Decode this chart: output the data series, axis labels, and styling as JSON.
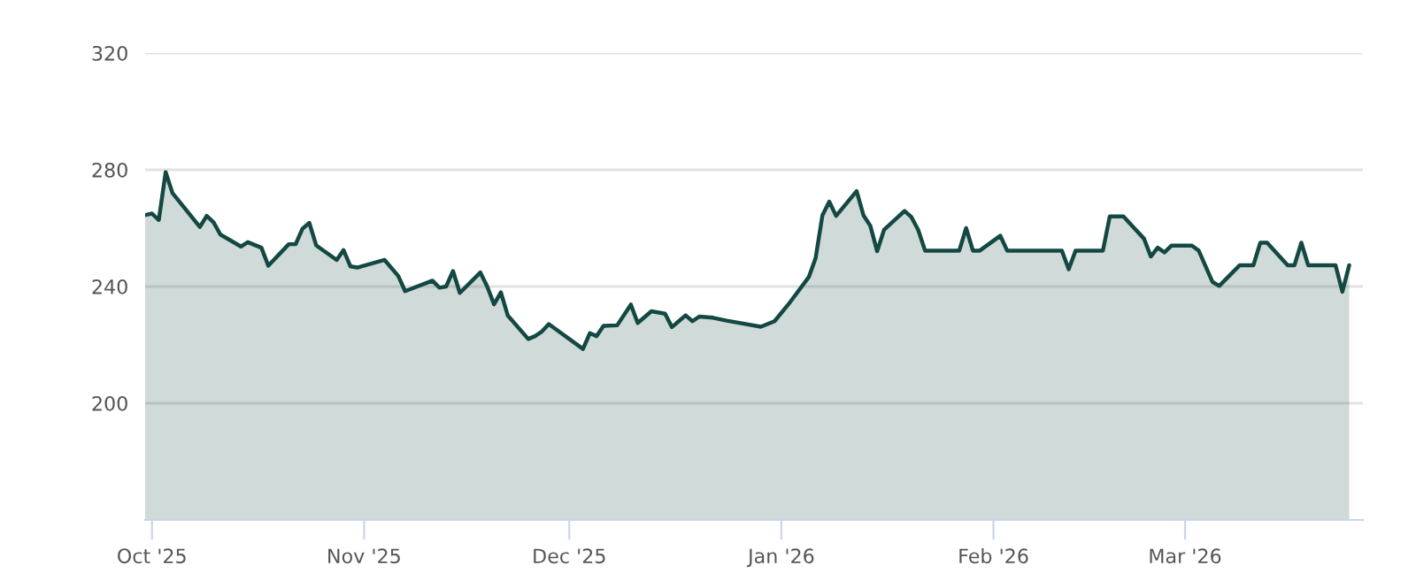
{
  "chart_data": {
    "type": "area",
    "x": [
      "2025-09-30",
      "2025-10-01",
      "2025-10-02",
      "2025-10-03",
      "2025-10-04",
      "2025-10-08",
      "2025-10-09",
      "2025-10-10",
      "2025-10-11",
      "2025-10-14",
      "2025-10-15",
      "2025-10-17",
      "2025-10-18",
      "2025-10-21",
      "2025-10-22",
      "2025-10-23",
      "2025-10-24",
      "2025-10-25",
      "2025-10-28",
      "2025-10-29",
      "2025-10-30",
      "2025-10-31",
      "2025-11-04",
      "2025-11-06",
      "2025-11-07",
      "2025-11-11",
      "2025-11-12",
      "2025-11-13",
      "2025-11-14",
      "2025-11-15",
      "2025-11-18",
      "2025-11-19",
      "2025-11-20",
      "2025-11-21",
      "2025-11-22",
      "2025-11-25",
      "2025-11-26",
      "2025-11-27",
      "2025-11-28",
      "2025-12-03",
      "2025-12-04",
      "2025-12-05",
      "2025-12-06",
      "2025-12-08",
      "2025-12-10",
      "2025-12-11",
      "2025-12-13",
      "2025-12-15",
      "2025-12-16",
      "2025-12-18",
      "2025-12-19",
      "2025-12-20",
      "2025-12-22",
      "2025-12-24",
      "2025-12-29",
      "2025-12-31",
      "2026-01-02",
      "2026-01-05",
      "2026-01-06",
      "2026-01-07",
      "2026-01-08",
      "2026-01-09",
      "2026-01-12",
      "2026-01-13",
      "2026-01-14",
      "2026-01-15",
      "2026-01-16",
      "2026-01-19",
      "2026-01-20",
      "2026-01-21",
      "2026-01-22",
      "2026-01-27",
      "2026-01-28",
      "2026-01-29",
      "2026-01-30",
      "2026-02-02",
      "2026-02-03",
      "2026-02-11",
      "2026-02-12",
      "2026-02-13",
      "2026-02-17",
      "2026-02-18",
      "2026-02-20",
      "2026-02-23",
      "2026-02-24",
      "2026-02-25",
      "2026-02-26",
      "2026-02-27",
      "2026-03-02",
      "2026-03-03",
      "2026-03-05",
      "2026-03-06",
      "2026-03-09",
      "2026-03-11",
      "2026-03-12",
      "2026-03-13",
      "2026-03-16",
      "2026-03-17",
      "2026-03-18",
      "2026-03-19",
      "2026-03-23",
      "2026-03-24",
      "2026-03-25"
    ],
    "series": [
      {
        "color": "#134843",
        "values": [
          264.5,
          265,
          262.8,
          279.2,
          272,
          260.4,
          264.2,
          262,
          257.8,
          253.7,
          255.2,
          253.3,
          247.1,
          254.5,
          254.5,
          259.8,
          261.8,
          254.1,
          249.1,
          252.5,
          246.9,
          246.5,
          249.1,
          243.6,
          238.4,
          242,
          239.6,
          240,
          245.3,
          237.8,
          244.8,
          240,
          233.9,
          238,
          230.1,
          222,
          223,
          224.6,
          227.1,
          218.6,
          224,
          223,
          226.5,
          226.7,
          233.8,
          227.5,
          231.5,
          230.7,
          226.1,
          230.1,
          228.1,
          229.7,
          229.3,
          228.3,
          226.2,
          228.1,
          233.8,
          243.2,
          249.7,
          264.4,
          269.1,
          264.2,
          272.7,
          264.4,
          260.8,
          252.1,
          259.4,
          265.9,
          263.8,
          259.4,
          252.3,
          252.3,
          260,
          252.3,
          252.3,
          257.4,
          252.3,
          252.3,
          245.9,
          252.3,
          252.3,
          264,
          264,
          256.4,
          250.3,
          253.3,
          251.7,
          254,
          254,
          252.3,
          241.6,
          240.2,
          247.3,
          247.3,
          255,
          255,
          247.3,
          247.3,
          255,
          247.3,
          247.3,
          238.2,
          247.3
        ]
      }
    ],
    "xlim": [
      "2025-09-30",
      "2026-03-27"
    ],
    "xticks": [
      {
        "value": "2025-10-01",
        "label": "Oct '25"
      },
      {
        "value": "2025-11-01",
        "label": "Nov '25"
      },
      {
        "value": "2025-12-01",
        "label": "Dec '25"
      },
      {
        "value": "2026-01-01",
        "label": "Jan '26"
      },
      {
        "value": "2026-02-01",
        "label": "Feb '26"
      },
      {
        "value": "2026-03-01",
        "label": "Mar '26"
      }
    ],
    "ylim": [
      160,
      320
    ],
    "yticks": [
      200,
      240,
      280,
      320
    ],
    "grid": "y"
  }
}
